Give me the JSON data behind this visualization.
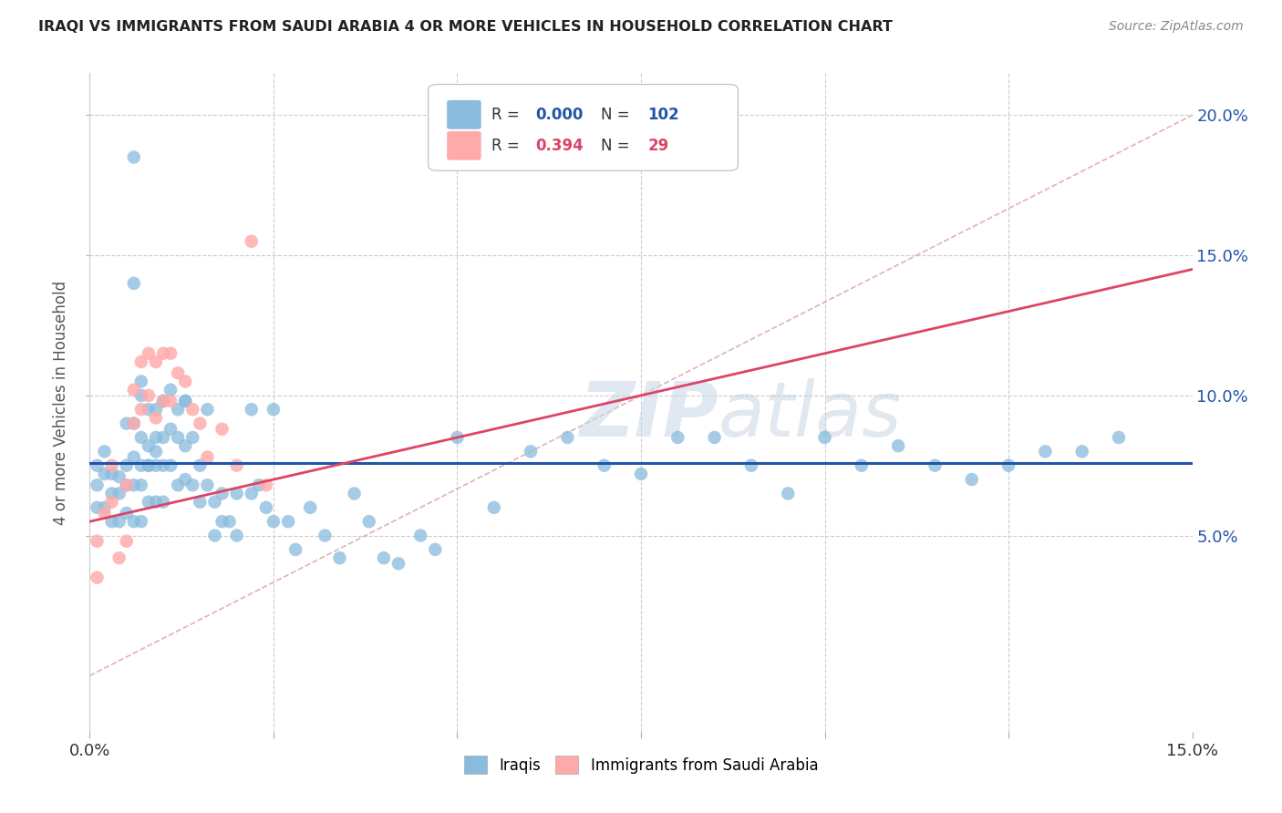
{
  "title": "IRAQI VS IMMIGRANTS FROM SAUDI ARABIA 4 OR MORE VEHICLES IN HOUSEHOLD CORRELATION CHART",
  "source": "Source: ZipAtlas.com",
  "ylabel": "4 or more Vehicles in Household",
  "xlim": [
    0.0,
    0.15
  ],
  "ylim": [
    -0.02,
    0.215
  ],
  "ytick_vals": [
    0.05,
    0.1,
    0.15,
    0.2
  ],
  "ytick_labels": [
    "5.0%",
    "10.0%",
    "15.0%",
    "20.0%"
  ],
  "xtick_vals": [
    0.0,
    0.025,
    0.05,
    0.075,
    0.1,
    0.125,
    0.15
  ],
  "watermark_zip": "ZIP",
  "watermark_atlas": "atlas",
  "legend_R_blue": "0.000",
  "legend_N_blue": "102",
  "legend_R_pink": "0.394",
  "legend_N_pink": "29",
  "blue_color": "#89BBDD",
  "pink_color": "#FFAAAA",
  "diag_line_color": "#DDAAAA",
  "blue_trend_color": "#2255AA",
  "pink_trend_color": "#DD4466",
  "blue_hline_y": 0.076,
  "diag_line_x": [
    0.0,
    0.15
  ],
  "diag_line_y": [
    0.0,
    0.2
  ],
  "pink_trend_x": [
    0.0,
    0.15
  ],
  "pink_trend_y": [
    0.055,
    0.145
  ],
  "blue_scatter_x": [
    0.001,
    0.001,
    0.001,
    0.002,
    0.002,
    0.002,
    0.003,
    0.003,
    0.003,
    0.004,
    0.004,
    0.004,
    0.005,
    0.005,
    0.005,
    0.005,
    0.006,
    0.006,
    0.006,
    0.006,
    0.006,
    0.007,
    0.007,
    0.007,
    0.007,
    0.007,
    0.008,
    0.008,
    0.008,
    0.008,
    0.009,
    0.009,
    0.009,
    0.009,
    0.01,
    0.01,
    0.01,
    0.01,
    0.011,
    0.011,
    0.011,
    0.012,
    0.012,
    0.012,
    0.013,
    0.013,
    0.013,
    0.014,
    0.014,
    0.015,
    0.015,
    0.016,
    0.016,
    0.017,
    0.017,
    0.018,
    0.018,
    0.019,
    0.02,
    0.02,
    0.022,
    0.022,
    0.023,
    0.024,
    0.025,
    0.025,
    0.027,
    0.028,
    0.03,
    0.032,
    0.034,
    0.036,
    0.038,
    0.04,
    0.042,
    0.045,
    0.047,
    0.05,
    0.055,
    0.06,
    0.065,
    0.07,
    0.075,
    0.08,
    0.085,
    0.09,
    0.095,
    0.1,
    0.105,
    0.11,
    0.115,
    0.12,
    0.125,
    0.13,
    0.135,
    0.14,
    0.006,
    0.007,
    0.008,
    0.009,
    0.01,
    0.013
  ],
  "blue_scatter_y": [
    0.075,
    0.068,
    0.06,
    0.08,
    0.072,
    0.06,
    0.072,
    0.065,
    0.055,
    0.071,
    0.065,
    0.055,
    0.09,
    0.075,
    0.068,
    0.058,
    0.14,
    0.09,
    0.078,
    0.068,
    0.055,
    0.1,
    0.085,
    0.075,
    0.068,
    0.055,
    0.095,
    0.082,
    0.075,
    0.062,
    0.095,
    0.085,
    0.075,
    0.062,
    0.098,
    0.085,
    0.075,
    0.062,
    0.102,
    0.088,
    0.075,
    0.095,
    0.085,
    0.068,
    0.098,
    0.082,
    0.07,
    0.085,
    0.068,
    0.075,
    0.062,
    0.095,
    0.068,
    0.062,
    0.05,
    0.065,
    0.055,
    0.055,
    0.065,
    0.05,
    0.095,
    0.065,
    0.068,
    0.06,
    0.095,
    0.055,
    0.055,
    0.045,
    0.06,
    0.05,
    0.042,
    0.065,
    0.055,
    0.042,
    0.04,
    0.05,
    0.045,
    0.085,
    0.06,
    0.08,
    0.085,
    0.075,
    0.072,
    0.085,
    0.085,
    0.075,
    0.065,
    0.085,
    0.075,
    0.082,
    0.075,
    0.07,
    0.075,
    0.08,
    0.08,
    0.085,
    0.185,
    0.105,
    0.075,
    0.08,
    0.098,
    0.098
  ],
  "pink_scatter_x": [
    0.001,
    0.001,
    0.002,
    0.003,
    0.003,
    0.004,
    0.005,
    0.005,
    0.006,
    0.006,
    0.007,
    0.007,
    0.008,
    0.008,
    0.009,
    0.009,
    0.01,
    0.01,
    0.011,
    0.011,
    0.012,
    0.013,
    0.014,
    0.015,
    0.016,
    0.018,
    0.02,
    0.022,
    0.024
  ],
  "pink_scatter_y": [
    0.048,
    0.035,
    0.058,
    0.075,
    0.062,
    0.042,
    0.068,
    0.048,
    0.102,
    0.09,
    0.112,
    0.095,
    0.115,
    0.1,
    0.112,
    0.092,
    0.115,
    0.098,
    0.115,
    0.098,
    0.108,
    0.105,
    0.095,
    0.09,
    0.078,
    0.088,
    0.075,
    0.155,
    0.068
  ]
}
